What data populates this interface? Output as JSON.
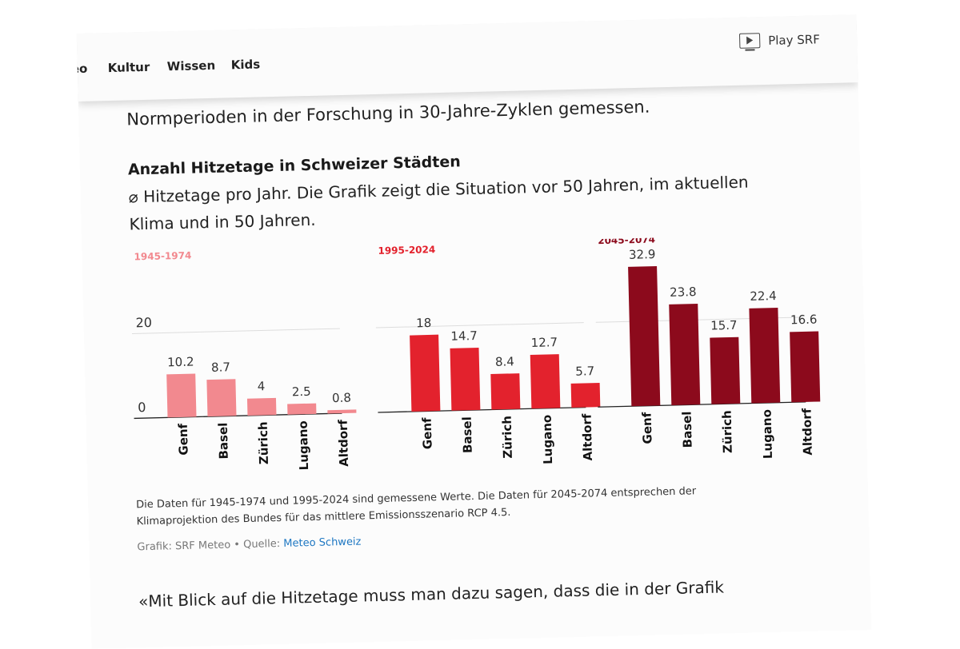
{
  "nav": {
    "items": [
      "eo",
      "Kultur",
      "Wissen",
      "Kids"
    ],
    "play_label": "Play SRF"
  },
  "article": {
    "lead_text": "Normperioden in der Forschung in 30-Jahre-Zyklen gemessen.",
    "chart_title": "Anzahl Hitzetage in Schweizer Städten",
    "chart_subtitle": "⌀ Hitzetage pro Jahr. Die Grafik zeigt die Situation vor 50 Jahren, im aktuellen Klima und in 50 Jahren.",
    "note": "Die Daten für 1945-1974 und 1995-2024 sind gemessene Werte. Die Daten für 2045-2074 entsprechen der Klimaprojektion des Bundes für das mittlere Emissionsszenario RCP 4.5.",
    "source_prefix": "Grafik: SRF Meteo • Quelle: ",
    "source_link": "Meteo Schweiz",
    "quote_text": "«Mit Blick auf die Hitzetage muss man dazu sagen, dass die in der Grafik"
  },
  "chart_data": {
    "type": "bar",
    "title": "Anzahl Hitzetage in Schweizer Städten",
    "categories": [
      "Genf",
      "Basel",
      "Zürich",
      "Lugano",
      "Altdorf"
    ],
    "ylim": [
      0,
      35
    ],
    "y_ticks": [
      0,
      20
    ],
    "grid": true,
    "series": [
      {
        "name": "1945-1974",
        "color": "#f2898f",
        "values": [
          10.2,
          8.7,
          4,
          2.5,
          0.8
        ]
      },
      {
        "name": "1995-2024",
        "color": "#e3222d",
        "values": [
          18,
          14.7,
          8.4,
          12.7,
          5.7
        ]
      },
      {
        "name": "2045-2074",
        "color": "#8c0a1c",
        "values": [
          32.9,
          23.8,
          15.7,
          22.4,
          16.6
        ]
      }
    ]
  }
}
